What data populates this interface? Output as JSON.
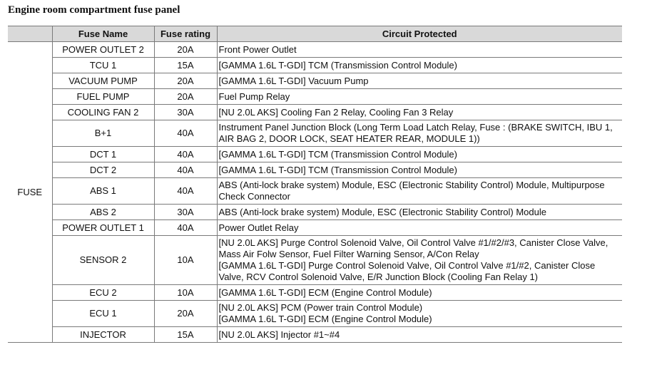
{
  "title": "Engine room compartment fuse panel",
  "table": {
    "headers": [
      "Fuse Name",
      "Fuse rating",
      "Circuit Protected"
    ],
    "group": "FUSE",
    "rows": [
      {
        "name": "POWER OUTLET 2",
        "rating": "20A",
        "circuit": [
          "Front Power Outlet"
        ]
      },
      {
        "name": "TCU 1",
        "rating": "15A",
        "circuit": [
          "[GAMMA 1.6L T-GDI] TCM (Transmission Control Module)"
        ]
      },
      {
        "name": "VACUUM PUMP",
        "rating": "20A",
        "circuit": [
          "[GAMMA 1.6L T-GDI] Vacuum Pump"
        ]
      },
      {
        "name": "FUEL PUMP",
        "rating": "20A",
        "circuit": [
          "Fuel Pump Relay"
        ]
      },
      {
        "name": "COOLING FAN 2",
        "rating": "30A",
        "circuit": [
          "[NU 2.0L AKS] Cooling Fan 2 Relay, Cooling Fan 3 Relay"
        ]
      },
      {
        "name": "B+1",
        "rating": "40A",
        "circuit": [
          "Instrument Panel Junction Block  (Long Term Load Latch Relay, Fuse : (BRAKE SWITCH, IBU 1, AIR BAG 2, DOOR LOCK, SEAT HEATER REAR, MODULE 1))"
        ]
      },
      {
        "name": "DCT 1",
        "rating": "40A",
        "circuit": [
          "[GAMMA 1.6L T-GDI] TCM (Transmission Control Module)"
        ]
      },
      {
        "name": "DCT 2",
        "rating": "40A",
        "circuit": [
          "[GAMMA 1.6L T-GDI] TCM (Transmission Control Module)"
        ]
      },
      {
        "name": "ABS 1",
        "rating": "40A",
        "circuit": [
          "ABS (Anti-lock brake system) Module, ESC (Electronic Stability Control) Module, Multipurpose Check Connector"
        ]
      },
      {
        "name": "ABS 2",
        "rating": "30A",
        "circuit": [
          "ABS (Anti-lock brake system) Module, ESC (Electronic Stability Control) Module"
        ]
      },
      {
        "name": "POWER OUTLET 1",
        "rating": "40A",
        "circuit": [
          "Power Outlet Relay"
        ]
      },
      {
        "name": "SENSOR 2",
        "rating": "10A",
        "circuit": [
          "[NU 2.0L AKS] Purge Control Solenoid Valve, Oil Control Valve #1/#2/#3, Canister Close Valve, Mass Air Folw Sensor, Fuel Filter Warning Sensor, A/Con Relay",
          "[GAMMA 1.6L T-GDI] Purge Control Solenoid Valve, Oil Control Valve #1/#2, Canister Close Valve, RCV Control Solenoid Valve, E/R Junction Block (Cooling Fan Relay 1)"
        ]
      },
      {
        "name": "ECU 2",
        "rating": "10A",
        "circuit": [
          "[GAMMA 1.6L T-GDI] ECM (Engine Control Module)"
        ]
      },
      {
        "name": "ECU 1",
        "rating": "20A",
        "circuit": [
          "[NU 2.0L AKS] PCM (Power train Control Module)",
          "[GAMMA 1.6L T-GDI] ECM (Engine Control Module)"
        ]
      },
      {
        "name": "INJECTOR",
        "rating": "15A",
        "circuit": [
          "[NU 2.0L AKS] Injector #1~#4"
        ]
      }
    ]
  }
}
